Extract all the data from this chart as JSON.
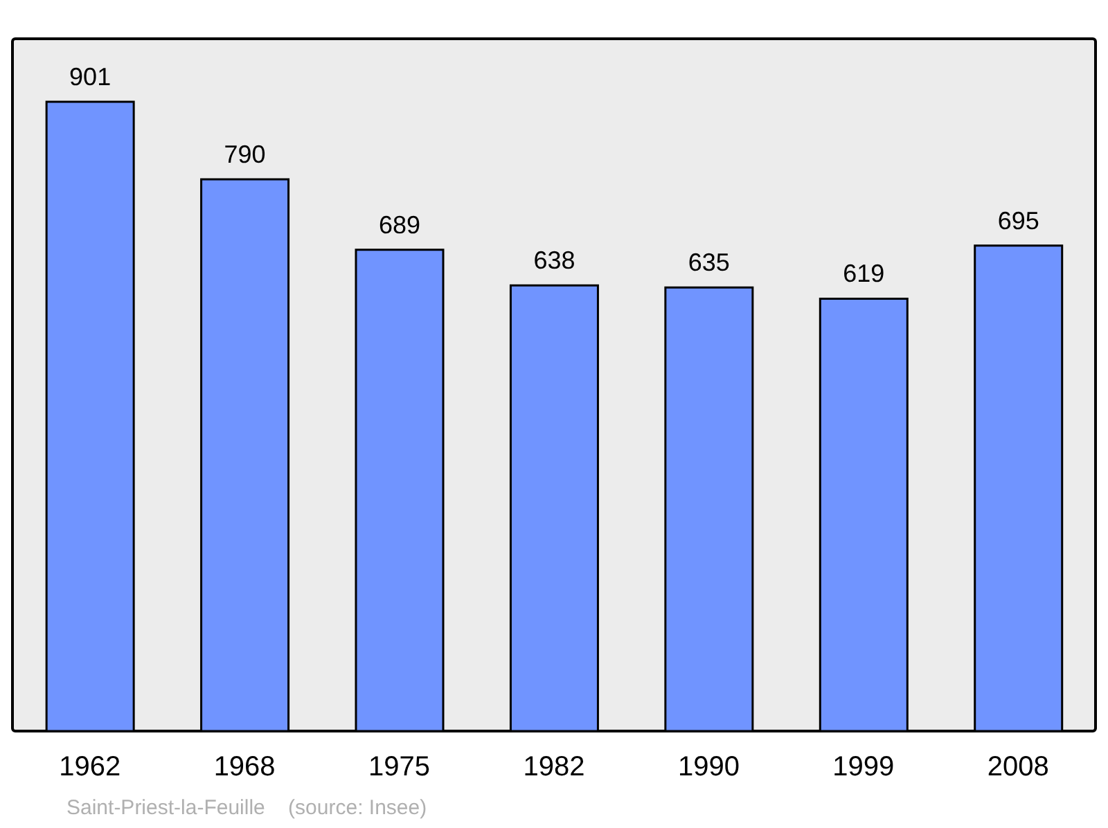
{
  "chart_data": {
    "type": "bar",
    "categories": [
      "1962",
      "1968",
      "1975",
      "1982",
      "1990",
      "1999",
      "2008"
    ],
    "values": [
      901,
      790,
      689,
      638,
      635,
      619,
      695
    ],
    "color": "#7094ff",
    "data_labels": true,
    "annotations": [
      "Saint-Priest-la-Feuille    (source: Insee)"
    ]
  }
}
